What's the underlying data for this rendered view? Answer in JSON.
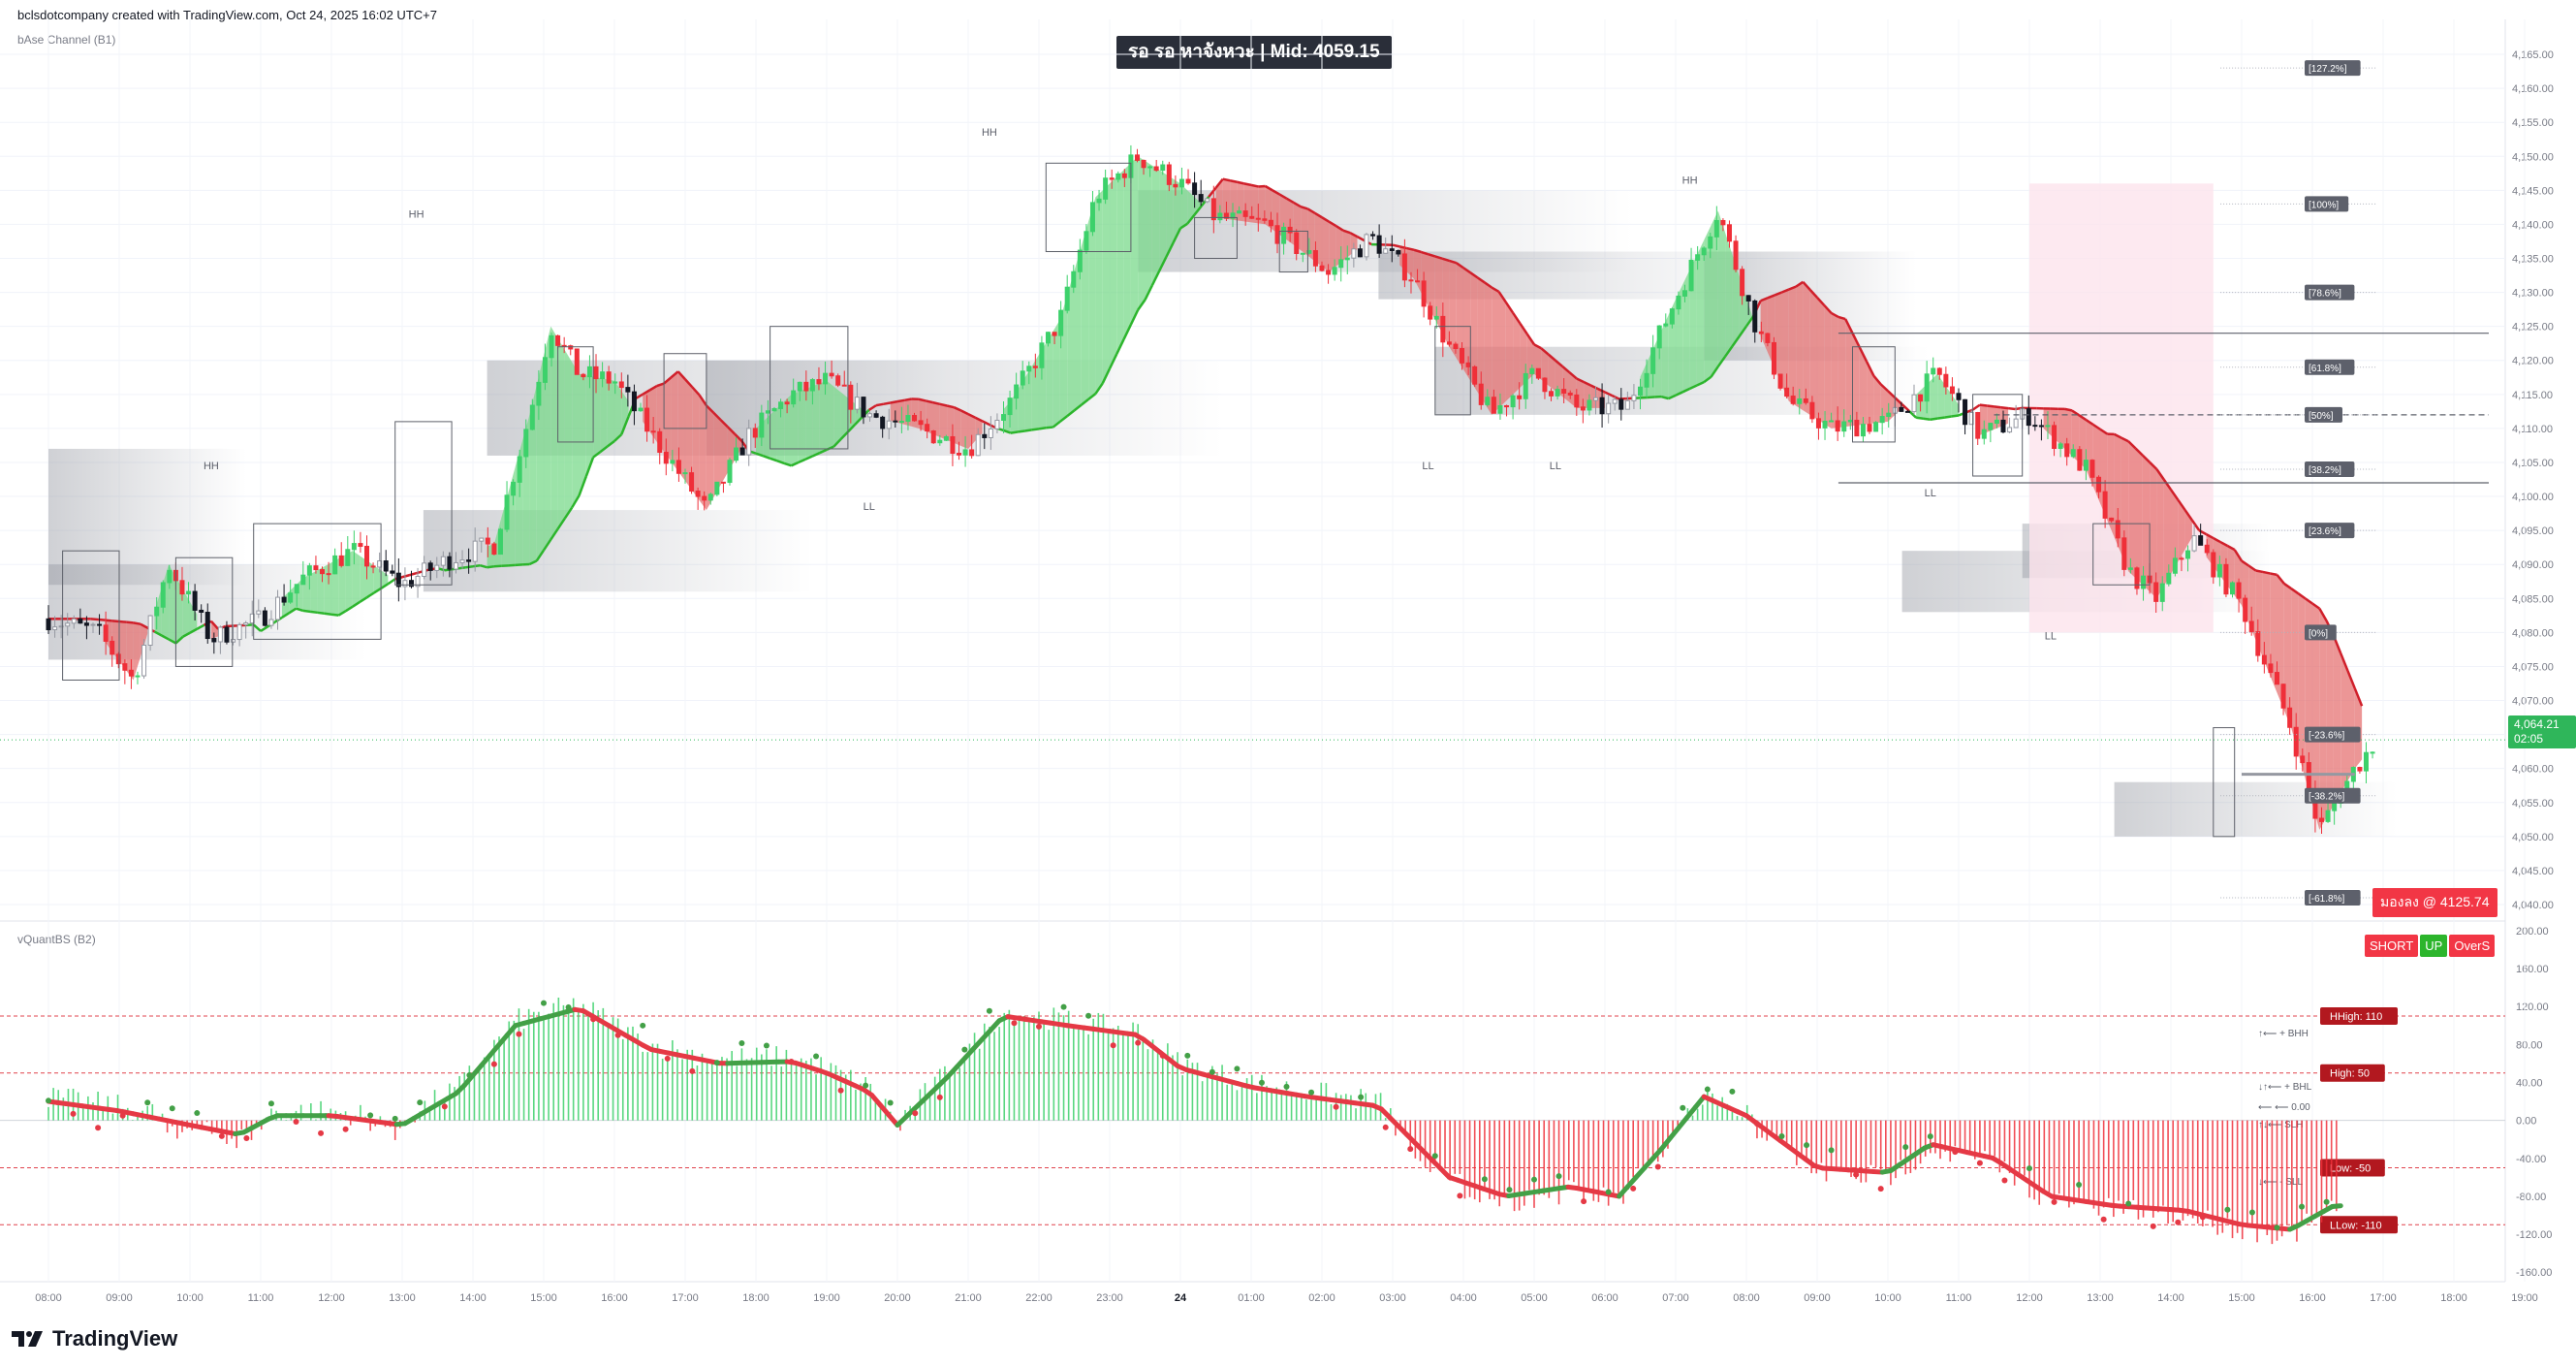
{
  "header": {
    "credit": "bclsdotcompany created with TradingView.com, Oct 24, 2025 16:02 UTC+7",
    "banner": "รอ รอ หาจังหวะ | Mid: 4059.15",
    "brand": "TradingView"
  },
  "panes": {
    "price_label": "bAse Channel (B1)",
    "osc_label": "vQuantBS (B2)"
  },
  "status": {
    "last_price": "4,064.21",
    "countdown": "02:05",
    "signal_text": "มองลง @ 4125.74",
    "badges": [
      "SHORT",
      "UP",
      "OverS"
    ]
  },
  "colors": {
    "bull": "#3dd16b",
    "bear": "#ef2f39",
    "fill_bull": "#79d98b",
    "fill_bear": "#e57373",
    "channel_up": "#2cb52c",
    "channel_down": "#d01f2a",
    "last_price_bg": "#2fb65a",
    "signal_bg": "#f23645",
    "box_dark": "#5d6069"
  },
  "chart_data": [
    {
      "type": "candlestick",
      "title": "bAse Channel (B1)",
      "x_ticks": [
        "08:00",
        "09:00",
        "10:00",
        "11:00",
        "12:00",
        "13:00",
        "14:00",
        "15:00",
        "16:00",
        "17:00",
        "18:00",
        "19:00",
        "20:00",
        "21:00",
        "22:00",
        "23:00",
        "24",
        "01:00",
        "02:00",
        "03:00",
        "04:00",
        "05:00",
        "06:00",
        "07:00",
        "08:00",
        "09:00",
        "10:00",
        "11:00",
        "12:00",
        "13:00",
        "14:00",
        "15:00",
        "16:00",
        "17:00",
        "18:00",
        "19:00"
      ],
      "y_ticks": [
        "4,165.00",
        "4,160.00",
        "4,155.00",
        "4,150.00",
        "4,145.00",
        "4,140.00",
        "4,135.00",
        "4,130.00",
        "4,125.00",
        "4,120.00",
        "4,115.00",
        "4,110.00",
        "4,105.00",
        "4,100.00",
        "4,095.00",
        "4,090.00",
        "4,085.00",
        "4,080.00",
        "4,075.00",
        "4,070.00",
        "4,065.00",
        "4,060.00",
        "4,055.00",
        "4,050.00",
        "4,045.00",
        "4,040.00"
      ],
      "ylim": [
        4039,
        4168
      ],
      "close_path": [
        [
          0,
          4082
        ],
        [
          0.7,
          4080
        ],
        [
          1.2,
          4073
        ],
        [
          1.7,
          4090
        ],
        [
          2.3,
          4079
        ],
        [
          3.0,
          4082
        ],
        [
          3.6,
          4088
        ],
        [
          4.3,
          4092
        ],
        [
          5.0,
          4087
        ],
        [
          5.7,
          4091
        ],
        [
          6.3,
          4093
        ],
        [
          6.8,
          4112
        ],
        [
          7.1,
          4125
        ],
        [
          7.5,
          4118
        ],
        [
          8.0,
          4117
        ],
        [
          8.6,
          4108
        ],
        [
          9.3,
          4098
        ],
        [
          9.9,
          4109
        ],
        [
          10.5,
          4115
        ],
        [
          11.0,
          4117
        ],
        [
          11.6,
          4112
        ],
        [
          12.3,
          4110
        ],
        [
          13.0,
          4107
        ],
        [
          13.6,
          4114
        ],
        [
          14.3,
          4126
        ],
        [
          14.8,
          4144
        ],
        [
          15.4,
          4150
        ],
        [
          16.0,
          4146
        ],
        [
          16.5,
          4141
        ],
        [
          17.2,
          4140
        ],
        [
          17.6,
          4137
        ],
        [
          18.1,
          4133
        ],
        [
          18.7,
          4138
        ],
        [
          19.3,
          4132
        ],
        [
          19.8,
          4122
        ],
        [
          20.4,
          4112
        ],
        [
          21.0,
          4118
        ],
        [
          21.6,
          4113
        ],
        [
          22.3,
          4113
        ],
        [
          23.0,
          4129
        ],
        [
          23.6,
          4142
        ],
        [
          24.1,
          4126
        ],
        [
          24.6,
          4114
        ],
        [
          25.2,
          4110
        ],
        [
          26.0,
          4111
        ],
        [
          26.7,
          4118
        ],
        [
          27.3,
          4109
        ],
        [
          28.0,
          4112
        ],
        [
          28.8,
          4104
        ],
        [
          29.4,
          4089
        ],
        [
          29.8,
          4085
        ],
        [
          30.3,
          4094
        ],
        [
          31.0,
          4084
        ],
        [
          31.7,
          4066
        ],
        [
          32.1,
          4051
        ],
        [
          32.6,
          4060
        ],
        [
          32.9,
          4064
        ]
      ],
      "annotations": [
        {
          "text": "HH",
          "x": 5.2,
          "y": 4141
        },
        {
          "text": "HH",
          "x": 13.3,
          "y": 4153
        },
        {
          "text": "HH",
          "x": 23.2,
          "y": 4146
        },
        {
          "text": "HH",
          "x": 2.3,
          "y": 4104
        },
        {
          "text": "LL",
          "x": 11.6,
          "y": 4098
        },
        {
          "text": "LL",
          "x": 19.5,
          "y": 4104
        },
        {
          "text": "LL",
          "x": 21.3,
          "y": 4104
        },
        {
          "text": "LL",
          "x": 26.6,
          "y": 4100
        },
        {
          "text": "LL",
          "x": 28.3,
          "y": 4079
        }
      ],
      "fib_levels": [
        {
          "label": "[127.2%]",
          "y": 4163
        },
        {
          "label": "[100%]",
          "y": 4143
        },
        {
          "label": "[78.6%]",
          "y": 4130
        },
        {
          "label": "[61.8%]",
          "y": 4119
        },
        {
          "label": "[50%]",
          "y": 4112
        },
        {
          "label": "[38.2%]",
          "y": 4104
        },
        {
          "label": "[23.6%]",
          "y": 4095
        },
        {
          "label": "[0%]",
          "y": 4080
        },
        {
          "label": "[-23.6%]",
          "y": 4065
        },
        {
          "label": "[-38.2%]",
          "y": 4056
        },
        {
          "label": "[-61.8%]",
          "y": 4041
        }
      ]
    },
    {
      "type": "histogram",
      "title": "vQuantBS (B2)",
      "y_ticks": [
        "200.00",
        "160.00",
        "120.00",
        "80.00",
        "40.00",
        "0.00",
        "-40.00",
        "-80.00",
        "-120.00",
        "-160.00"
      ],
      "ylim": [
        -170,
        205
      ],
      "levels": [
        {
          "label": "HHigh: 110",
          "y": 110
        },
        {
          "label": "High: 50",
          "y": 50
        },
        {
          "label": "Low: -50",
          "y": -50
        },
        {
          "label": "LLow: -110",
          "y": -110
        }
      ],
      "side_notes": [
        "↑⟵ + BHH",
        "↓↑⟵ + BHL",
        "⟵ ⟵ 0.00",
        "↑↓⟵ SLH",
        "↓⟵ - SLL"
      ],
      "osc_path": [
        [
          0,
          20
        ],
        [
          1.0,
          10
        ],
        [
          2.0,
          -5
        ],
        [
          2.7,
          -15
        ],
        [
          3.2,
          5
        ],
        [
          4.0,
          5
        ],
        [
          5.0,
          -5
        ],
        [
          5.8,
          30
        ],
        [
          6.6,
          100
        ],
        [
          7.5,
          118
        ],
        [
          8.5,
          75
        ],
        [
          9.5,
          60
        ],
        [
          10.5,
          62
        ],
        [
          11.0,
          50
        ],
        [
          11.6,
          30
        ],
        [
          12.0,
          -5
        ],
        [
          12.7,
          45
        ],
        [
          13.5,
          110
        ],
        [
          14.4,
          100
        ],
        [
          15.4,
          90
        ],
        [
          16.0,
          55
        ],
        [
          17.0,
          35
        ],
        [
          17.8,
          25
        ],
        [
          18.8,
          15
        ],
        [
          19.8,
          -60
        ],
        [
          20.6,
          -80
        ],
        [
          21.5,
          -70
        ],
        [
          22.2,
          -80
        ],
        [
          22.8,
          -30
        ],
        [
          23.4,
          25
        ],
        [
          24.0,
          5
        ],
        [
          25.0,
          -50
        ],
        [
          26.0,
          -55
        ],
        [
          26.6,
          -25
        ],
        [
          27.5,
          -40
        ],
        [
          28.3,
          -80
        ],
        [
          29.2,
          -90
        ],
        [
          30.2,
          -95
        ],
        [
          31.0,
          -110
        ],
        [
          31.7,
          -115
        ],
        [
          32.3,
          -90
        ]
      ]
    }
  ]
}
